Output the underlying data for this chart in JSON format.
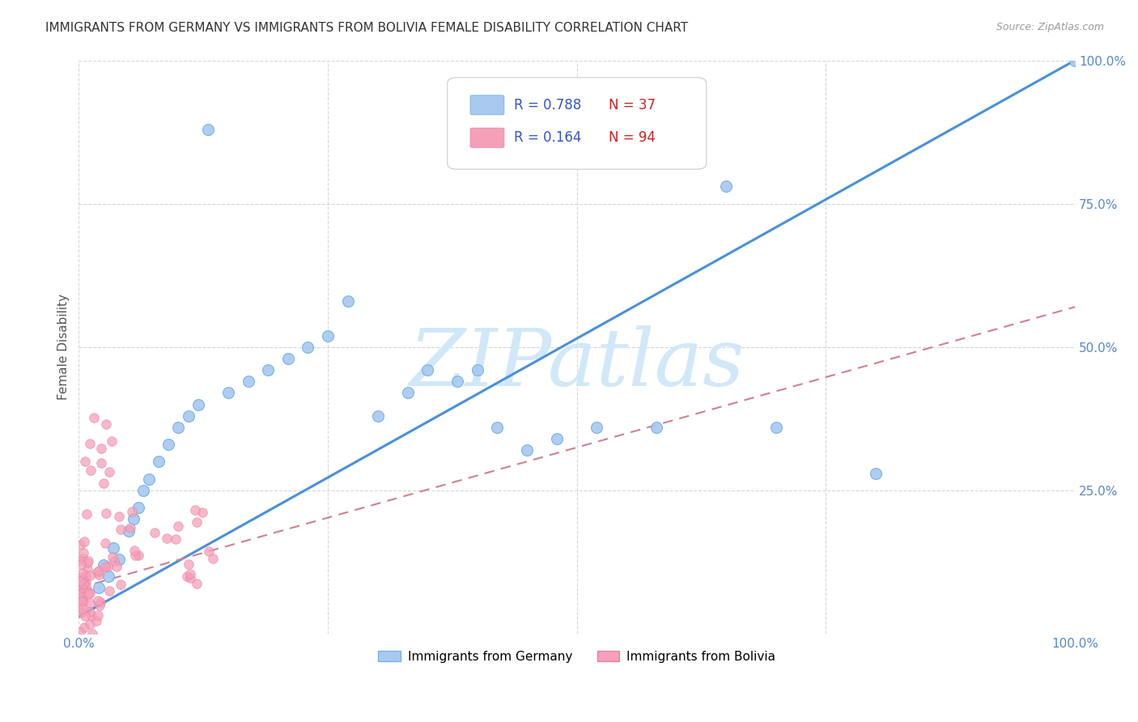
{
  "title": "IMMIGRANTS FROM GERMANY VS IMMIGRANTS FROM BOLIVIA FEMALE DISABILITY CORRELATION CHART",
  "source": "Source: ZipAtlas.com",
  "ylabel": "Female Disability",
  "xlim": [
    0,
    1.0
  ],
  "ylim": [
    0,
    1.0
  ],
  "germany_R": 0.788,
  "germany_N": 37,
  "bolivia_R": 0.164,
  "bolivia_N": 94,
  "germany_color": "#a8c8f0",
  "germany_edge_color": "#6aaee8",
  "germany_line_color": "#4a90d9",
  "bolivia_color": "#f5a0b8",
  "bolivia_edge_color": "#e878a0",
  "bolivia_line_color": "#d08090",
  "watermark_color": "#d0e8f8",
  "background_color": "#ffffff",
  "title_color": "#333333",
  "tick_color": "#5588cc",
  "legend_R_color": "#3355cc",
  "legend_N_color": "#cc2222",
  "grid_color": "#cccccc"
}
